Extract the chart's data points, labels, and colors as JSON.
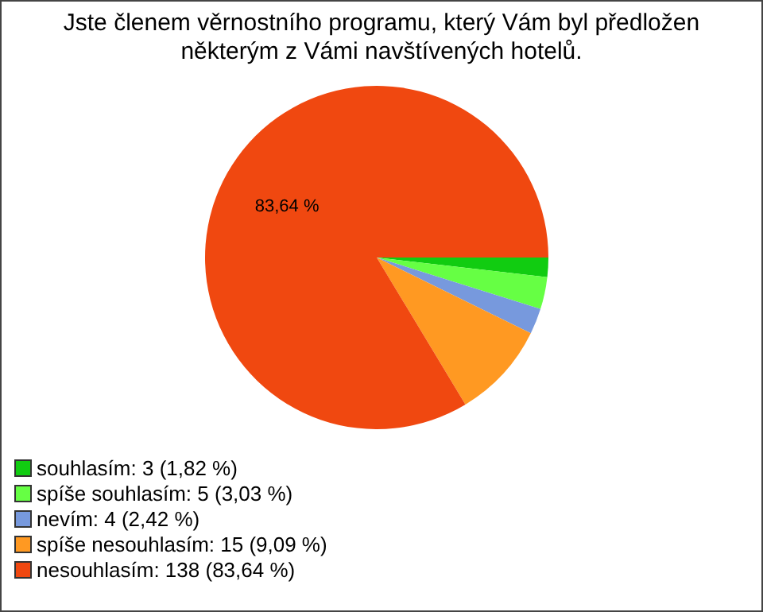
{
  "chart_data": {
    "type": "pie",
    "title": "Jste členem věrnostního programu, který Vám byl předložen některým z Vámi navštívených hotelů.",
    "categories": [
      "souhlasím: 3 (1,82 %)",
      "spíše souhlasím: 5 (3,03 %)",
      "nevím: 4 (2,42 %)",
      "spíše nesouhlasím: 15 (9,09 %)",
      "nesouhlasím: 138 (83,64 %)"
    ],
    "values": [
      1.82,
      3.03,
      2.42,
      9.09,
      83.64
    ],
    "colors": [
      "#11cc11",
      "#66ff44",
      "#7799dd",
      "#ff9922",
      "#f04810"
    ],
    "value_labels": [
      null,
      null,
      null,
      null,
      "83,64 %"
    ],
    "legend": "bottom left"
  }
}
